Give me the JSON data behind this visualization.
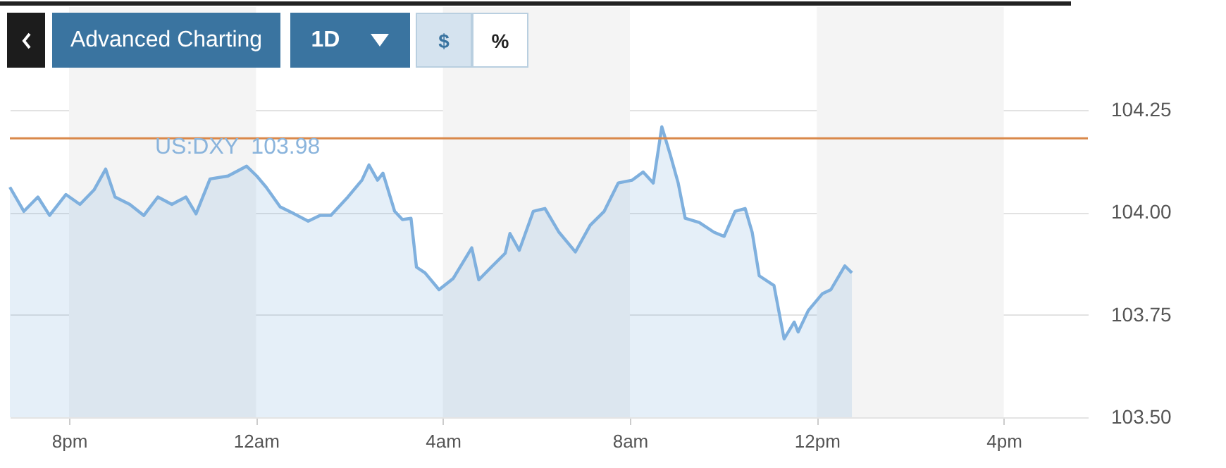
{
  "chart_data": {
    "type": "area",
    "x": [
      "--06-26T18:44",
      "--06-26T19:02",
      "--06-26T19:20",
      "--06-26T19:35",
      "--06-26T19:56",
      "--06-26T20:14",
      "--06-26T20:32",
      "--06-26T20:47",
      "--06-26T20:59",
      "--06-26T21:18",
      "--06-26T21:36",
      "--06-26T21:54",
      "--06-26T22:12",
      "--06-26T22:30",
      "--06-26T22:43",
      "--06-26T23:01",
      "--06-26T23:24",
      "--06-26T23:48",
      "--06-27T00:01",
      "--06-27T00:13",
      "--06-27T00:31",
      "--06-27T00:49",
      "--06-27T01:07",
      "--06-27T01:22",
      "--06-27T01:36",
      "--06-27T01:58",
      "--06-27T02:16",
      "--06-27T02:25",
      "--06-27T02:36",
      "--06-27T02:43",
      "--06-27T02:58",
      "--06-27T03:08",
      "--06-27T03:19",
      "--06-27T03:26",
      "--06-27T03:37",
      "--06-27T03:55",
      "--06-27T04:13",
      "--06-27T04:37",
      "--06-27T04:46",
      "--06-27T05:02",
      "--06-27T05:20",
      "--06-27T05:26",
      "--06-27T05:38",
      "--06-27T05:56",
      "--06-27T06:11",
      "--06-27T06:29",
      "--06-27T06:50",
      "--06-27T07:09",
      "--06-27T07:27",
      "--06-27T07:45",
      "--06-27T08:03",
      "--06-27T08:17",
      "--06-27T08:30",
      "--06-27T08:41",
      "--06-27T08:52",
      "--06-27T09:02",
      "--06-27T09:11",
      "--06-27T09:29",
      "--06-27T09:48",
      "--06-27T10:01",
      "--06-27T10:15",
      "--06-27T10:28",
      "--06-27T10:37",
      "--06-27T10:46",
      "--06-27T11:05",
      "--06-27T11:18",
      "--06-27T11:31",
      "--06-27T11:36",
      "--06-27T11:49",
      "--06-27T12:07",
      "--06-27T12:18",
      "--06-27T12:36",
      "--06-27T12:45"
    ],
    "series": [
      {
        "color": "#7fb0de",
        "values": [
          104.061,
          104.002,
          104.037,
          103.992,
          104.043,
          104.019,
          104.054,
          104.105,
          104.037,
          104.019,
          103.992,
          104.037,
          104.019,
          104.037,
          103.996,
          104.081,
          104.088,
          104.112,
          104.088,
          104.061,
          104.013,
          103.996,
          103.978,
          103.992,
          103.992,
          104.037,
          104.078,
          104.115,
          104.078,
          104.095,
          104.002,
          103.982,
          103.985,
          103.866,
          103.852,
          103.811,
          103.838,
          103.913,
          103.835,
          103.866,
          103.9,
          103.948,
          103.907,
          104.002,
          104.009,
          103.951,
          103.903,
          103.968,
          104.002,
          104.071,
          104.078,
          104.098,
          104.071,
          104.208,
          104.139,
          104.071,
          103.985,
          103.975,
          103.951,
          103.941,
          104.002,
          104.009,
          103.951,
          103.845,
          103.821,
          103.691,
          103.732,
          103.708,
          103.76,
          103.801,
          103.811,
          103.869,
          103.852
        ]
      }
    ],
    "xlim": [
      "--06-26T18:44",
      "--06-27T17:48"
    ],
    "xticks": [
      {
        "value": "--06-26T20:00",
        "label": "8pm"
      },
      {
        "value": "--06-27T00:00",
        "label": "12am"
      },
      {
        "value": "--06-27T04:00",
        "label": "4am"
      },
      {
        "value": "--06-27T08:00",
        "label": "8am"
      },
      {
        "value": "--06-27T12:00",
        "label": "12pm"
      },
      {
        "value": "--06-27T16:00",
        "label": "4pm"
      }
    ],
    "ylim": [
      103.5,
      104.5
    ],
    "yticks": [
      {
        "value": 103.5,
        "label": "103.50"
      },
      {
        "value": 103.75,
        "label": "103.75"
      },
      {
        "value": 104,
        "label": "104.00"
      },
      {
        "value": 104.25,
        "label": "104.25"
      }
    ],
    "grid": "y",
    "ref_lines": [
      {
        "axis": "y",
        "value": 104.18,
        "color": "#d9884a"
      }
    ],
    "bands": [
      {
        "axis": "x",
        "from": "--06-26T20:00",
        "to": "--06-27T00:00",
        "color": "#f4f4f4"
      },
      {
        "axis": "x",
        "from": "--06-27T04:00",
        "to": "--06-27T08:00",
        "color": "#f4f4f4"
      },
      {
        "axis": "x",
        "from": "--06-27T12:00",
        "to": "--06-27T16:00",
        "color": "#f4f4f4"
      }
    ],
    "annotations": [
      "US:DXY  103.98",
      "Advanced Charting",
      "1D",
      "$",
      "%"
    ]
  }
}
